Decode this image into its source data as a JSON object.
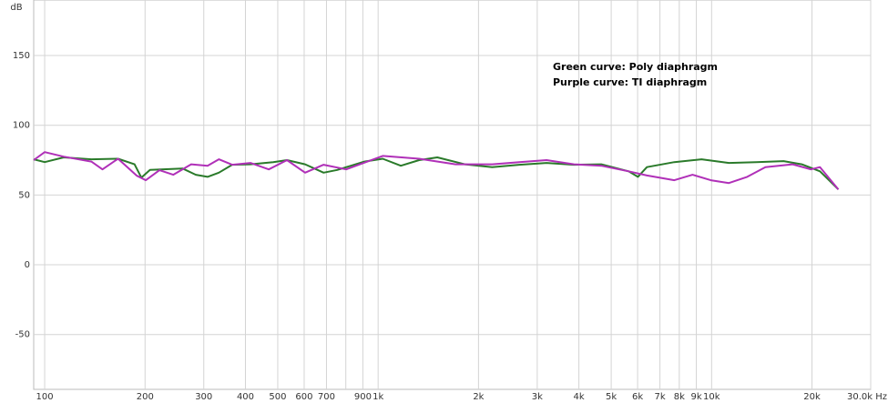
{
  "chart_data": {
    "type": "line",
    "y_label": "dB",
    "log_x": true,
    "grid": true,
    "annotations": [
      "Green curve: Poly diaphragm",
      "Purple curve: TI diaphragm"
    ],
    "xlim": [
      92.7,
      30000
    ],
    "ylim": [
      -89.3,
      189.8
    ],
    "yticks": [
      -50,
      0,
      50,
      100,
      150
    ],
    "xticks": [
      100,
      200,
      300,
      400,
      500,
      600,
      700,
      {
        "value": 800,
        "label": null
      },
      900,
      {
        "value": 1000,
        "label": "1k"
      },
      {
        "value": 2000,
        "label": "2k"
      },
      {
        "value": 3000,
        "label": "3k"
      },
      {
        "value": 4000,
        "label": "4k"
      },
      {
        "value": 5000,
        "label": "5k"
      },
      {
        "value": 6000,
        "label": "6k"
      },
      {
        "value": 7000,
        "label": "7k"
      },
      {
        "value": 8000,
        "label": "8k"
      },
      {
        "value": 9000,
        "label": "9k"
      },
      {
        "value": 10000,
        "label": "10k"
      },
      {
        "value": 20000,
        "label": "20k"
      },
      {
        "value": 30000,
        "label": "30.0k Hz"
      }
    ],
    "series": [
      {
        "color": "#2a7a2a",
        "x": [
          92.7,
          100,
          114,
          138,
          166,
          186,
          195,
          207,
          259,
          284,
          308,
          333,
          365,
          414,
          485,
          533,
          604,
          686,
          754,
          910,
          1032,
          1170,
          1327,
          1505,
          1820,
          2198,
          2651,
          3199,
          3865,
          4670,
          5640,
          6010,
          6400,
          7730,
          9330,
          11270,
          13620,
          16440,
          18640,
          21140,
          23990
        ],
        "values": [
          75.6,
          73.6,
          77,
          75.6,
          76,
          72,
          62.5,
          68,
          69,
          64.5,
          63,
          66,
          71.7,
          72,
          73.6,
          75,
          72,
          66,
          68,
          74,
          76,
          71,
          75,
          77,
          72,
          70,
          71.7,
          73,
          71.7,
          72,
          67,
          63,
          70,
          73.6,
          75.6,
          73,
          73.6,
          74.3,
          72,
          67,
          54
        ]
      },
      {
        "color": "#b030b8",
        "x": [
          92.7,
          100,
          114,
          138,
          149,
          166,
          189,
          201,
          221,
          243,
          275,
          308,
          333,
          365,
          414,
          470,
          533,
          604,
          686,
          802,
          1032,
          1327,
          1707,
          2198,
          2651,
          3199,
          3865,
          4670,
          5640,
          6400,
          7730,
          8770,
          9940,
          11270,
          12790,
          14500,
          17500,
          19860,
          21140,
          23990
        ],
        "values": [
          75,
          80.8,
          77.5,
          74,
          68.4,
          76,
          63.8,
          60.6,
          67.8,
          64.5,
          72,
          71,
          75.6,
          71.7,
          73,
          68.4,
          75,
          66,
          71.7,
          68.4,
          78,
          76,
          72,
          72,
          73.6,
          75,
          72,
          71,
          67,
          64,
          60.6,
          64.5,
          60.6,
          58.6,
          63,
          70,
          72,
          68.4,
          70,
          54
        ]
      }
    ]
  }
}
